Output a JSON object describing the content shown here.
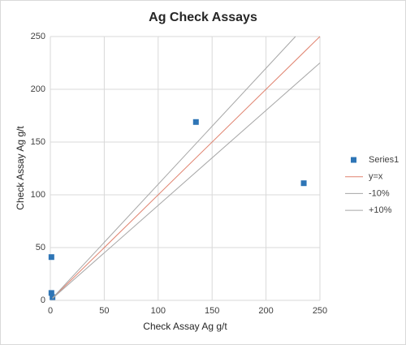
{
  "chart_data": {
    "type": "scatter",
    "title": "Ag Check Assays",
    "x_label": "Check Assay Ag g/t",
    "y_label": "Check Assay Ag g/t",
    "xlim": [
      0,
      250
    ],
    "ylim": [
      0,
      250
    ],
    "xticks": [
      0,
      50,
      100,
      150,
      200,
      250
    ],
    "yticks": [
      0,
      50,
      100,
      150,
      200,
      250
    ],
    "grid": true,
    "legend": "right",
    "series": [
      {
        "name": "Series1",
        "color": "#2e75b6",
        "mode": "markers",
        "x": [
          1,
          1,
          2,
          135,
          235
        ],
        "values": [
          41,
          7,
          3,
          169,
          111
        ]
      },
      {
        "name": "y=x",
        "color": "#e0826e",
        "mode": "line",
        "x": [
          2,
          250
        ],
        "values": [
          2,
          250
        ]
      },
      {
        "name": "-10%",
        "color": "#a6a6a6",
        "mode": "line",
        "x": [
          2,
          250
        ],
        "values": [
          1.8,
          225
        ]
      },
      {
        "name": "+10%",
        "color": "#a6a6a6",
        "mode": "line",
        "x": [
          2,
          227.3
        ],
        "values": [
          2.2,
          250
        ]
      }
    ]
  }
}
